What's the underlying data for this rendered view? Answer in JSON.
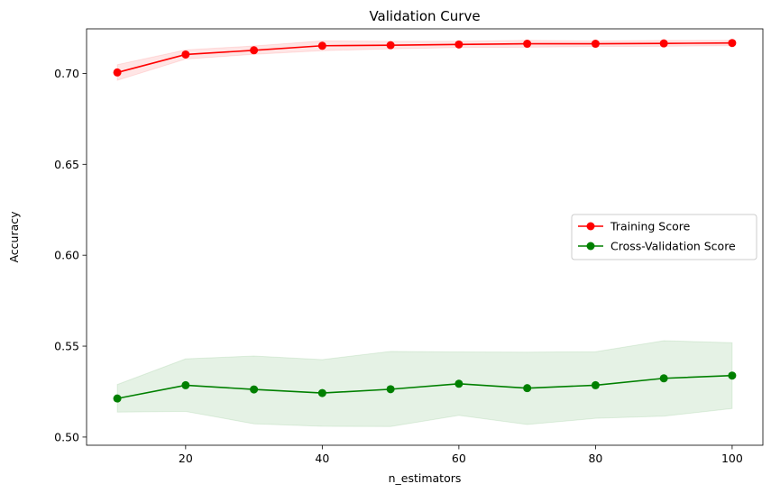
{
  "chart_data": {
    "type": "line",
    "title": "Validation Curve",
    "xlabel": "n_estimators",
    "ylabel": "Accuracy",
    "x": [
      10,
      20,
      30,
      40,
      50,
      60,
      70,
      80,
      90,
      100
    ],
    "xlim": [
      5.5,
      104.5
    ],
    "ylim": [
      0.4955,
      0.7245
    ],
    "xticks": [
      20,
      40,
      60,
      80,
      100
    ],
    "xtick_labels": [
      "20",
      "40",
      "60",
      "80",
      "100"
    ],
    "yticks": [
      0.5,
      0.55,
      0.6,
      0.65,
      0.7
    ],
    "ytick_labels": [
      "0.50",
      "0.55",
      "0.60",
      "0.65",
      "0.70"
    ],
    "grid": false,
    "legend_position": "center-right",
    "series": [
      {
        "name": "Training Score",
        "color": "#ff0000",
        "marker": "circle",
        "values": [
          0.7005,
          0.7104,
          0.7127,
          0.7152,
          0.7155,
          0.7159,
          0.7163,
          0.7163,
          0.7165,
          0.7167
        ],
        "band_lower": [
          0.6962,
          0.7079,
          0.7105,
          0.7125,
          0.7135,
          0.7142,
          0.7144,
          0.7148,
          0.7149,
          0.7152
        ],
        "band_upper": [
          0.7048,
          0.7129,
          0.7151,
          0.7179,
          0.7176,
          0.7176,
          0.7182,
          0.7178,
          0.7181,
          0.7182
        ]
      },
      {
        "name": "Cross-Validation Score",
        "color": "#008000",
        "marker": "circle",
        "values": [
          0.5212,
          0.5285,
          0.5262,
          0.5242,
          0.5263,
          0.5293,
          0.5269,
          0.5285,
          0.5323,
          0.5338
        ],
        "band_lower": [
          0.5137,
          0.5141,
          0.5073,
          0.5059,
          0.5058,
          0.5119,
          0.5069,
          0.5103,
          0.5115,
          0.5157
        ],
        "band_upper": [
          0.5289,
          0.543,
          0.5446,
          0.5426,
          0.5471,
          0.5468,
          0.5467,
          0.5469,
          0.553,
          0.5519
        ]
      }
    ]
  }
}
